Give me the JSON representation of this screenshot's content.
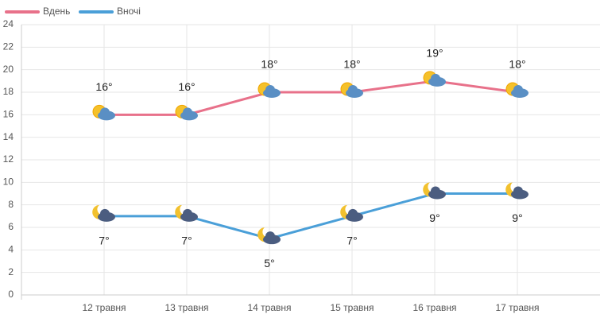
{
  "chart_data": {
    "type": "line",
    "categories": [
      null,
      "12 травня",
      "13 травня",
      "14 травня",
      "15 травня",
      "16 травня",
      "17 травня",
      null
    ],
    "series": [
      {
        "name": "Вдень",
        "color": "#e8718a",
        "values": [
          null,
          16,
          16,
          18,
          18,
          19,
          18,
          null
        ],
        "value_labels": [
          null,
          "16°",
          "16°",
          "18°",
          "18°",
          "19°",
          "18°",
          null
        ]
      },
      {
        "name": "Вночі",
        "color": "#4a9fd8",
        "values": [
          null,
          7,
          7,
          5,
          7,
          9,
          9,
          null
        ],
        "value_labels": [
          null,
          "7°",
          "7°",
          "5°",
          "7°",
          "9°",
          "9°",
          null
        ]
      }
    ],
    "ylim": [
      0,
      24
    ],
    "yticks": [
      0,
      2,
      4,
      6,
      8,
      10,
      12,
      14,
      16,
      18,
      20,
      22,
      24
    ],
    "grid": true
  }
}
